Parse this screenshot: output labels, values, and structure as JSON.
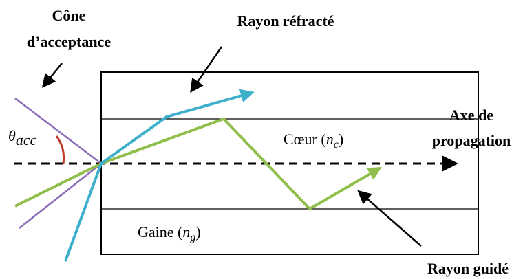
{
  "labels": {
    "cone": [
      "Cône",
      "d’acceptance"
    ],
    "refracted": "Rayon réfracté",
    "axis": [
      "Axe de",
      "propagation"
    ],
    "theta": {
      "symbol": "θ",
      "subscript": "acc"
    },
    "core": {
      "prefix": "Cœur (",
      "symbol": "n",
      "subscript": "c",
      "suffix": ")"
    },
    "cladding": {
      "prefix": "Gaine (",
      "symbol": "n",
      "subscript": "g",
      "suffix": ")"
    },
    "guided": "Rayon guidé"
  }
}
